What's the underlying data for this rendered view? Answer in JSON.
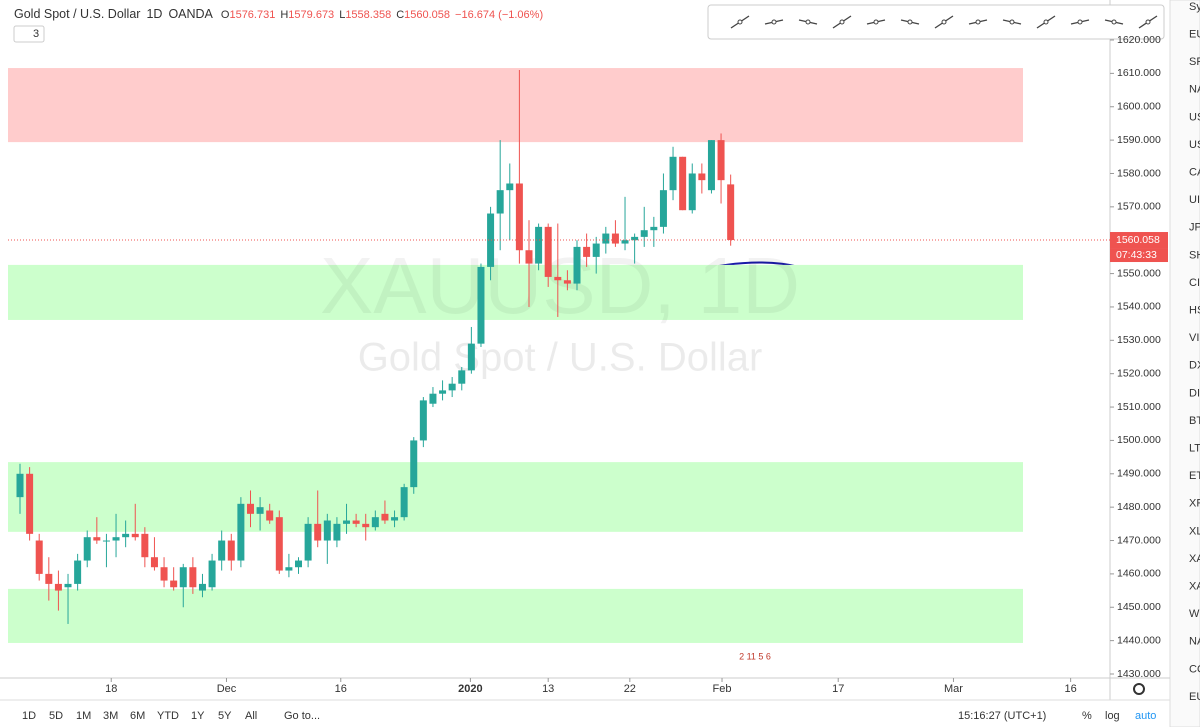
{
  "chart_data": {
    "type": "candlestick",
    "title": "Gold Spot / U.S. Dollar",
    "interval": "1D",
    "source": "OANDA",
    "ohlc_prefixes": [
      "O",
      "H",
      "L",
      "C"
    ],
    "change": "−16.674 (−1.06%)",
    "hidden_count": "3",
    "watermark": [
      "XAUUSD, 1D",
      "Gold Spot / U.S. Dollar"
    ],
    "up_color": "#26a69a",
    "down_color": "#ef5350",
    "open": [
      1483,
      1490,
      1470,
      1460,
      1457,
      1456,
      1457,
      1464,
      1471,
      1470,
      1470,
      1471,
      1472,
      1472,
      1465,
      1462,
      1458,
      1456,
      1462,
      1455,
      1456,
      1464,
      1470,
      1464,
      1481,
      1478,
      1479,
      1477,
      1461,
      1462,
      1464,
      1475,
      1470,
      1470,
      1475,
      1476,
      1475,
      1474,
      1478,
      1476,
      1477,
      1486,
      1500,
      1511,
      1514,
      1515,
      1517,
      1521,
      1529,
      1552,
      1568,
      1575,
      1577,
      1557,
      1553,
      1564,
      1549,
      1548,
      1547,
      1558,
      1555,
      1559,
      1562,
      1559,
      1560,
      1561,
      1563,
      1564,
      1575,
      1585,
      1569,
      1580,
      1575,
      1590,
      1576.731
    ],
    "high": [
      1493,
      1492,
      1472,
      1465,
      1461,
      1460,
      1466,
      1473,
      1477,
      1472,
      1478,
      1476,
      1481,
      1474,
      1471,
      1465,
      1462,
      1463,
      1465,
      1460,
      1466,
      1473,
      1472,
      1483,
      1485,
      1483,
      1481,
      1479,
      1466,
      1465,
      1477,
      1485,
      1478,
      1477,
      1481,
      1478,
      1478,
      1479,
      1482,
      1479,
      1487,
      1501,
      1513,
      1516,
      1518,
      1519,
      1522,
      1534,
      1553,
      1570,
      1590,
      1583,
      1611,
      1566,
      1565,
      1565,
      1565,
      1551,
      1560,
      1562,
      1561,
      1564,
      1566,
      1573,
      1562,
      1570,
      1567,
      1580,
      1588,
      1585,
      1583,
      1583,
      1590,
      1592,
      1579.673
    ],
    "low": [
      1478,
      1470,
      1458,
      1452,
      1449,
      1445,
      1455,
      1462,
      1469,
      1462,
      1465,
      1468,
      1470,
      1462,
      1461,
      1456,
      1455,
      1450,
      1454,
      1453,
      1455,
      1461,
      1461,
      1462,
      1474,
      1473,
      1475,
      1460,
      1459,
      1460,
      1462,
      1468,
      1463,
      1468,
      1472,
      1474,
      1470,
      1473,
      1475,
      1474,
      1476,
      1484,
      1498,
      1510,
      1512,
      1513,
      1515,
      1520,
      1528,
      1548,
      1557,
      1560,
      1553,
      1540,
      1551,
      1546,
      1537,
      1545,
      1545,
      1552,
      1550,
      1556,
      1558,
      1557,
      1553,
      1558,
      1558,
      1562,
      1572,
      1569,
      1568,
      1574,
      1574,
      1571,
      1558.358
    ],
    "close": [
      1490,
      1472,
      1460,
      1457,
      1455,
      1457,
      1464,
      1471,
      1470,
      1470,
      1471,
      1472,
      1471,
      1465,
      1462,
      1458,
      1456,
      1462,
      1456,
      1457,
      1464,
      1470,
      1464,
      1481,
      1478,
      1480,
      1476,
      1461,
      1462,
      1464,
      1475,
      1470,
      1476,
      1475,
      1476,
      1475,
      1474,
      1477,
      1476,
      1477,
      1486,
      1500,
      1512,
      1514,
      1515,
      1517,
      1521,
      1529,
      1552,
      1568,
      1575,
      1577,
      1557,
      1553,
      1564,
      1549,
      1548,
      1547,
      1558,
      1555,
      1559,
      1562,
      1559,
      1560,
      1561,
      1563,
      1564,
      1575,
      1585,
      1569,
      1580,
      1578,
      1590,
      1578,
      1560.058
    ],
    "countdown": "07:43:33",
    "zones": [
      {
        "from": 1589.4,
        "to": 1611.6,
        "color": "#ffcccc"
      },
      {
        "from": 1536.1,
        "to": 1552.6,
        "color": "#ccffcc"
      },
      {
        "from": 1472.6,
        "to": 1493.5,
        "color": "#ccffcc"
      },
      {
        "from": 1439.3,
        "to": 1455.5,
        "color": "#ccffcc"
      }
    ],
    "ylim": [
      1428.8,
      1623
    ],
    "yticks": [
      {
        "value": 1430,
        "label": "1430.000"
      },
      {
        "value": 1440,
        "label": "1440.000"
      },
      {
        "value": 1450,
        "label": "1450.000"
      },
      {
        "value": 1460,
        "label": "1460.000"
      },
      {
        "value": 1470,
        "label": "1470.000"
      },
      {
        "value": 1480,
        "label": "1480.000"
      },
      {
        "value": 1490,
        "label": "1490.000"
      },
      {
        "value": 1500,
        "label": "1500.000"
      },
      {
        "value": 1510,
        "label": "1510.000"
      },
      {
        "value": 1520,
        "label": "1520.000"
      },
      {
        "value": 1530,
        "label": "1530.000"
      },
      {
        "value": 1540,
        "label": "1540.000"
      },
      {
        "value": 1550,
        "label": "1550.000"
      },
      {
        "value": 1560,
        "label": "1560.000"
      },
      {
        "value": 1570,
        "label": "1570.000"
      },
      {
        "value": 1580,
        "label": "1580.000"
      },
      {
        "value": 1590,
        "label": "1590.000"
      },
      {
        "value": 1600,
        "label": "1600.000"
      },
      {
        "value": 1610,
        "label": "1610.000"
      },
      {
        "value": 1620,
        "label": "1620.000"
      }
    ],
    "xlim": [
      -1.25,
      113.5
    ],
    "xticks": [
      {
        "value": 9.5,
        "label": "18"
      },
      {
        "value": 21.5,
        "label": "Dec"
      },
      {
        "value": 33.4,
        "label": "16"
      },
      {
        "value": 46.9,
        "label": "2020"
      },
      {
        "value": 55,
        "label": "13"
      },
      {
        "value": 63.5,
        "label": "22"
      },
      {
        "value": 73.1,
        "label": "Feb"
      },
      {
        "value": 85.2,
        "label": "17"
      },
      {
        "value": 97.2,
        "label": "Mar"
      },
      {
        "value": 109.4,
        "label": "16"
      }
    ],
    "events": "2 11 5 6"
  },
  "bottom_bar": {
    "ranges": [
      "1D",
      "5D",
      "1M",
      "3M",
      "6M",
      "YTD",
      "1Y",
      "5Y",
      "All"
    ],
    "goto": "Go to...",
    "time": "15:16:27 (UTC+1)",
    "options": [
      "%",
      "log",
      "auto"
    ]
  },
  "watchlist": [
    "Sy",
    "EU",
    "SP",
    "NA",
    "US",
    "US",
    "CA",
    "UI",
    "JP",
    "SH",
    "CI",
    "HS",
    "VI",
    "DX",
    "DI",
    "BT",
    "LT",
    "ET",
    "XF",
    "XL",
    "XA",
    "XA",
    "W",
    "NA",
    "CO",
    "EU"
  ]
}
